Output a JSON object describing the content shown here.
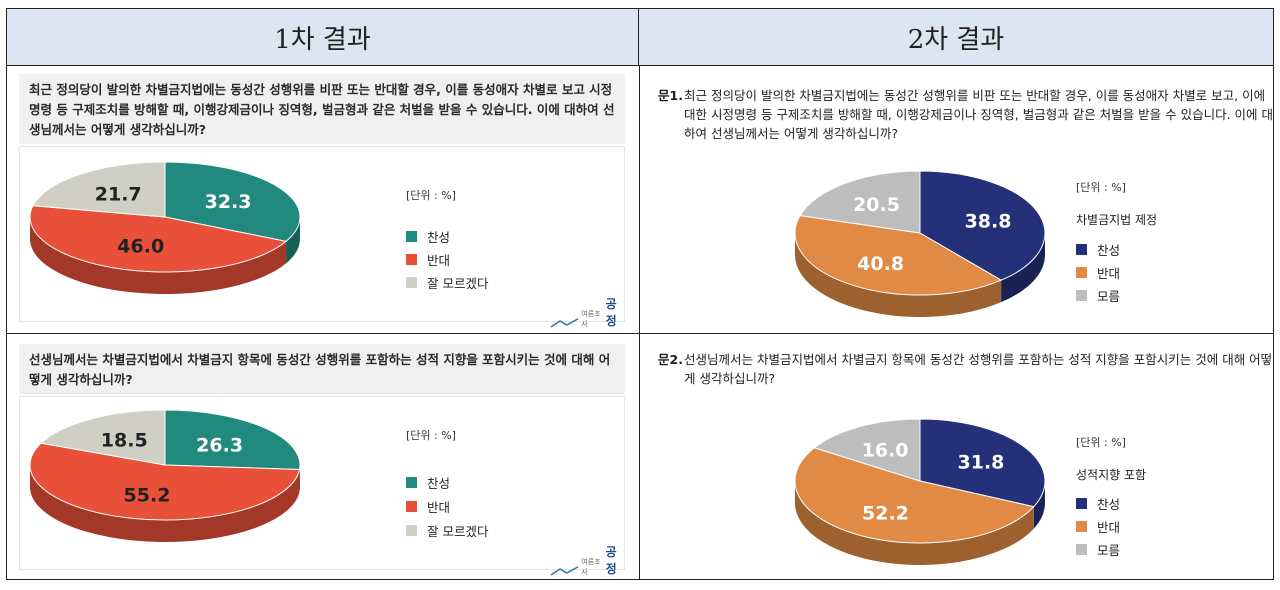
{
  "header": {
    "left": "1차  결과",
    "right": "2차  결과"
  },
  "round1": {
    "q1": {
      "question": "최근 정의당이 발의한 차별금지법에는 동성간 성행위를 비판 또는 반대할 경우, 이를 동성애자 차별로 보고 시정명령 등 구제조치를 방해할 때, 이행강제금이나 징역형, 벌금형과 같은 처벌을 받을 수 있습니다. 이에 대하여 선생님께서는 어떻게 생각하십니까?",
      "unit": "[단위 : %]",
      "legend": [
        "찬성",
        "반대",
        "잘 모르겠다"
      ]
    },
    "q2": {
      "question": "선생님께서는 차별금지법에서 차별금지 항목에 동성간 성행위를 포함하는 성적 지향을 포함시키는 것에 대해 어떻게 생각하십니까?",
      "unit": "[단위 : %]",
      "legend": [
        "찬성",
        "반대",
        "잘 모르겠다"
      ]
    },
    "logo": {
      "small": "여론조사",
      "big": "공정"
    }
  },
  "round2": {
    "q1": {
      "number": "문1.",
      "question": "최근 정의당이 발의한 차별금지법에는 동성간 성행위를 비판 또는 반대할 경우, 이를 동성애자 차별로 보고, 이에 대한 시정명령 등 구제조치를 방해할 때, 이행강제금이나 징역형, 벌금형과 같은 처벌을 받을 수 있습니다. 이에 대하여 선생님께서는 어떻게 생각하십니까?",
      "unit": "[단위 : %]",
      "legend_title": "차별금지법 제정",
      "legend": [
        "찬성",
        "반대",
        "모름"
      ]
    },
    "q2": {
      "number": "문2.",
      "question": "선생님께서는 차별금지법에서 차별금지 항목에 동성간 성행위를 포함하는 성적 지향을 포함시키는 것에 대해 어떻게 생각하십니까?",
      "unit": "[단위 : %]",
      "legend_title": "성적지향 포함",
      "legend": [
        "찬성",
        "반대",
        "모름"
      ]
    }
  },
  "colors": {
    "r1_support": "#21897e",
    "r1_oppose": "#e9503a",
    "r1_unknown": "#cfcfc3",
    "r2_support": "#25307a",
    "r2_oppose": "#e08a45",
    "r2_unknown": "#bdbdbd"
  },
  "chart_data": [
    {
      "type": "pie",
      "title": "",
      "categories": [
        "찬성",
        "반대",
        "잘 모르겠다"
      ],
      "values": [
        32.3,
        46.0,
        21.7
      ]
    },
    {
      "type": "pie",
      "title": "",
      "categories": [
        "찬성",
        "반대",
        "모름"
      ],
      "values": [
        38.8,
        40.8,
        20.5
      ]
    },
    {
      "type": "pie",
      "title": "",
      "categories": [
        "찬성",
        "반대",
        "잘 모르겠다"
      ],
      "values": [
        26.3,
        55.2,
        18.5
      ]
    },
    {
      "type": "pie",
      "title": "",
      "categories": [
        "찬성",
        "반대",
        "모름"
      ],
      "values": [
        31.8,
        52.2,
        16.0
      ]
    }
  ]
}
